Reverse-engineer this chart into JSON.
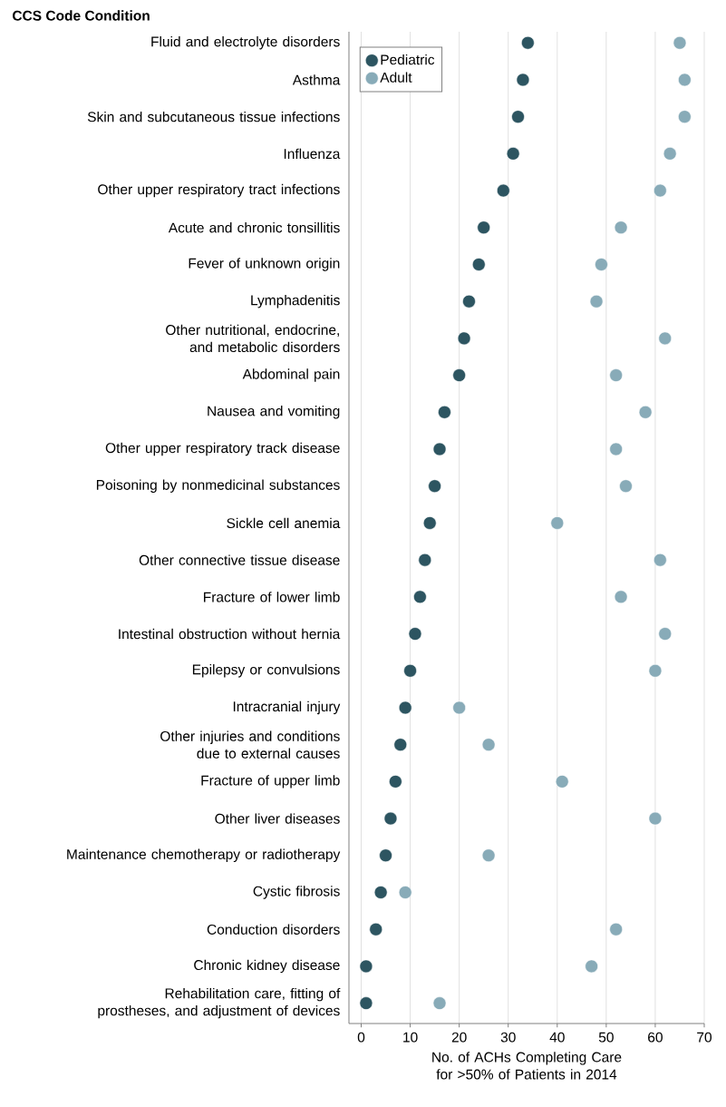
{
  "chart_data": {
    "type": "scatter",
    "ylabel": "CCS Code Condition",
    "xlabel": "No. of ACHs Completing Care for >50% of Patients in 2014",
    "categories": [
      "Fluid and electrolyte disorders",
      "Asthma",
      "Skin and subcutaneous tissue infections",
      "Influenza",
      "Other upper respiratory tract infections",
      "Acute and chronic tonsillitis",
      "Fever of unknown origin",
      "Lymphadenitis",
      "Other nutritional, endocrine, and metabolic disorders",
      "Abdominal pain",
      "Nausea and vomiting",
      "Other upper respiratory track disease",
      "Poisoning by nonmedicinal substances",
      "Sickle cell anemia",
      "Other connective tissue disease",
      "Fracture of lower limb",
      "Intestinal obstruction without hernia",
      "Epilepsy or convulsions",
      "Intracranial injury",
      "Other injuries and conditions due to external causes",
      "Fracture of upper limb",
      "Other liver diseases",
      "Maintenance chemotherapy or radiotherapy",
      "Cystic fibrosis",
      "Conduction disorders",
      "Chronic kidney disease",
      "Rehabilitation care, fitting of prostheses, and adjustment of devices"
    ],
    "series": [
      {
        "name": "Pediatric",
        "color": "#2d5561",
        "values": [
          34,
          33,
          32,
          31,
          29,
          25,
          24,
          22,
          21,
          20,
          17,
          16,
          15,
          14,
          13,
          12,
          11,
          10,
          9,
          8,
          7,
          6,
          5,
          4,
          3,
          1,
          1
        ]
      },
      {
        "name": "Adult",
        "color": "#88abb8",
        "values": [
          65,
          66,
          66,
          63,
          61,
          53,
          49,
          48,
          62,
          52,
          58,
          52,
          54,
          40,
          61,
          53,
          62,
          60,
          20,
          26,
          41,
          60,
          26,
          9,
          52,
          47,
          16
        ]
      }
    ],
    "xlim": [
      -2.5,
      70
    ],
    "xticks": [
      0,
      10,
      20,
      30,
      40,
      50,
      60,
      70
    ],
    "orientation": "horizontal",
    "grid": "x",
    "legend": "top left",
    "marker": "circle"
  }
}
